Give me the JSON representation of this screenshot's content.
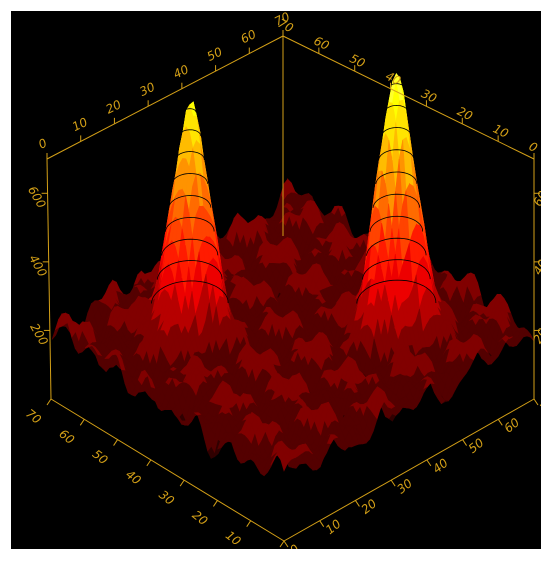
{
  "chart_data": {
    "type": "surface3d",
    "title": "",
    "colormap": "hot",
    "colors": {
      "background": "#000000",
      "axis": "#d4a017",
      "contour": "#000000"
    },
    "axes": {
      "x": {
        "label": "",
        "range": [
          0,
          70
        ],
        "ticks": [
          "0",
          "10",
          "20",
          "30",
          "40",
          "50",
          "60",
          "70"
        ]
      },
      "y": {
        "label": "",
        "range": [
          0,
          70
        ],
        "ticks": [
          "0",
          "10",
          "20",
          "30",
          "40",
          "50",
          "60",
          "70"
        ]
      },
      "z": {
        "label": "",
        "range": [
          0,
          700
        ],
        "ticks": [
          "200",
          "400",
          "600"
        ]
      }
    },
    "peaks": [
      {
        "name": "",
        "x": 50,
        "y": 20,
        "height": 760
      },
      {
        "name": "",
        "x": 20,
        "y": 50,
        "height": 680
      }
    ],
    "baseline": 150,
    "contour_levels": 14
  }
}
